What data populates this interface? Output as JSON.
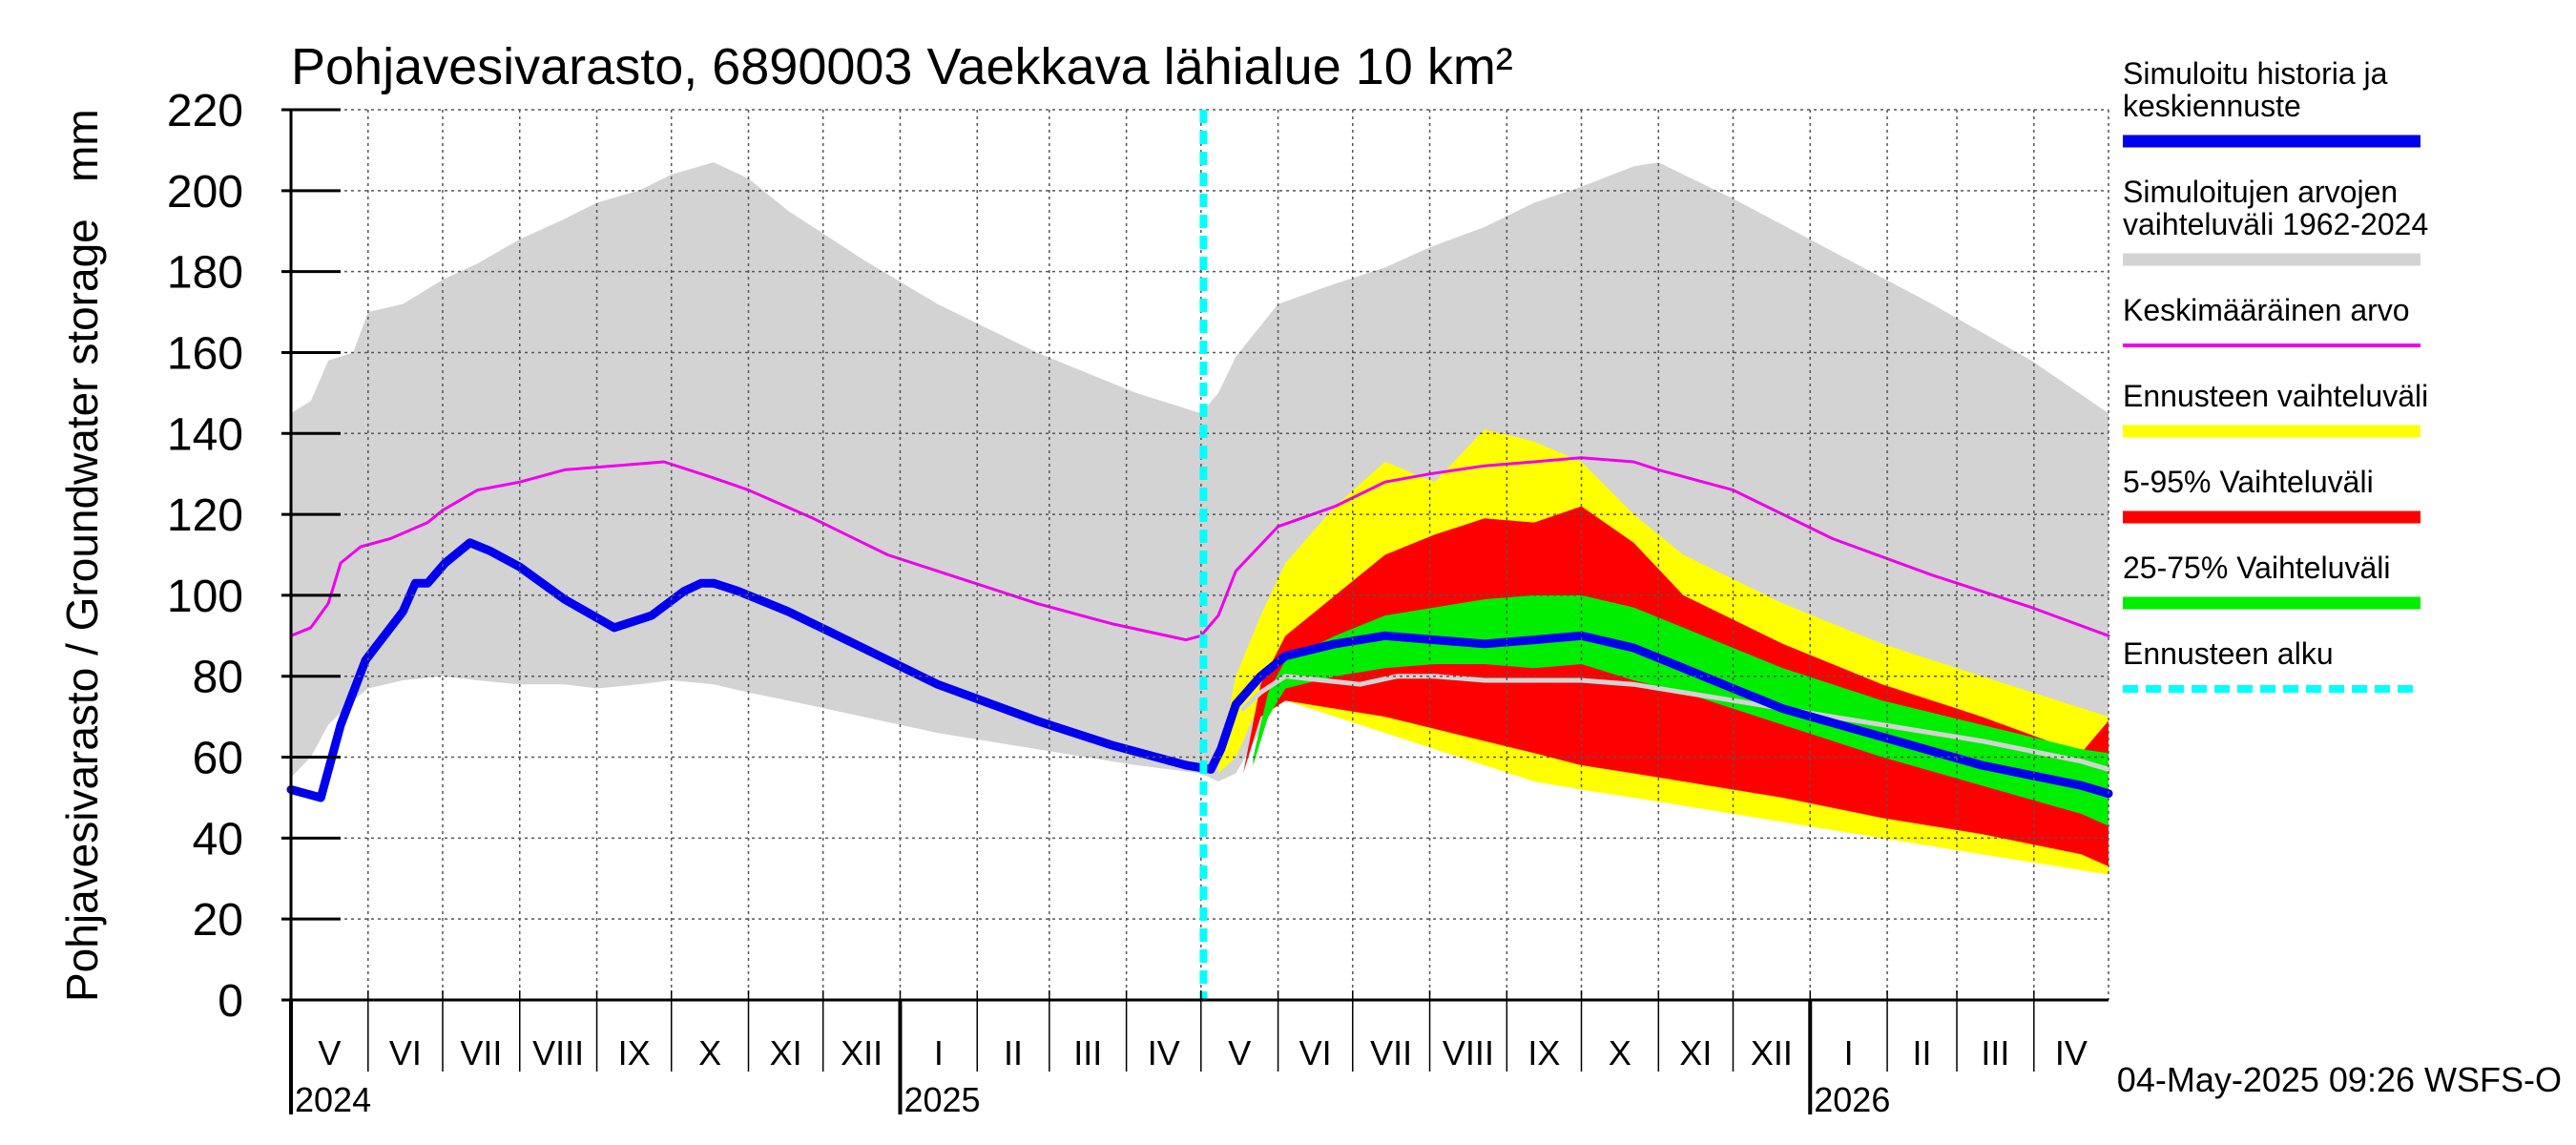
{
  "chart_data": {
    "type": "area",
    "title": "Pohjavesivarasto, 6890003 Vaekkava lähialue 10 km²",
    "ylabel": "Pohjavesivarasto / Groundwater storage   mm",
    "ylim": [
      0,
      220
    ],
    "yticks": [
      0,
      20,
      40,
      60,
      80,
      100,
      120,
      140,
      160,
      180,
      200,
      220
    ],
    "x_range_days": [
      0,
      731
    ],
    "forecast_start_day": 367,
    "months": [
      {
        "label": "V",
        "start": 0,
        "end": 31
      },
      {
        "label": "VI",
        "start": 31,
        "end": 61
      },
      {
        "label": "VII",
        "start": 61,
        "end": 92
      },
      {
        "label": "VIII",
        "start": 92,
        "end": 123
      },
      {
        "label": "IX",
        "start": 123,
        "end": 153
      },
      {
        "label": "X",
        "start": 153,
        "end": 184
      },
      {
        "label": "XI",
        "start": 184,
        "end": 214
      },
      {
        "label": "XII",
        "start": 214,
        "end": 245
      },
      {
        "label": "I",
        "start": 245,
        "end": 276
      },
      {
        "label": "II",
        "start": 276,
        "end": 305
      },
      {
        "label": "III",
        "start": 305,
        "end": 336
      },
      {
        "label": "IV",
        "start": 336,
        "end": 366
      },
      {
        "label": "V",
        "start": 366,
        "end": 397
      },
      {
        "label": "VI",
        "start": 397,
        "end": 427
      },
      {
        "label": "VII",
        "start": 427,
        "end": 458
      },
      {
        "label": "VIII",
        "start": 458,
        "end": 489
      },
      {
        "label": "IX",
        "start": 489,
        "end": 519
      },
      {
        "label": "X",
        "start": 519,
        "end": 550
      },
      {
        "label": "XI",
        "start": 550,
        "end": 580
      },
      {
        "label": "XII",
        "start": 580,
        "end": 611
      },
      {
        "label": "I",
        "start": 611,
        "end": 642
      },
      {
        "label": "II",
        "start": 642,
        "end": 670
      },
      {
        "label": "III",
        "start": 670,
        "end": 701
      },
      {
        "label": "IV",
        "start": 701,
        "end": 731
      }
    ],
    "years": [
      {
        "label": "2024",
        "day": 0
      },
      {
        "label": "2025",
        "day": 245
      },
      {
        "label": "2026",
        "day": 611
      }
    ],
    "series": [
      {
        "name": "Simuloitujen arvojen vaihteluväli 1962-2024",
        "kind": "band",
        "color": "#d3d3d3",
        "x": [
          0,
          8,
          15,
          25,
          31,
          45,
          61,
          75,
          92,
          110,
          123,
          140,
          153,
          170,
          184,
          200,
          230,
          260,
          300,
          340,
          366,
          373,
          380,
          397,
          420,
          440,
          458,
          480,
          500,
          519,
          540,
          550,
          580,
          620,
          660,
          700,
          731
        ],
        "upper": [
          145,
          148,
          158,
          160,
          170,
          172,
          178,
          182,
          188,
          193,
          197,
          200,
          204,
          207,
          203,
          195,
          183,
          172,
          160,
          150,
          145,
          150,
          159,
          172,
          177,
          181,
          186,
          191,
          197,
          201,
          206,
          207,
          198,
          185,
          172,
          158,
          145
        ],
        "lower": [
          55,
          60,
          68,
          74,
          77,
          79,
          80,
          79,
          78,
          78,
          77,
          78,
          79,
          78,
          76,
          74,
          70,
          66,
          62,
          58,
          56,
          54,
          56,
          74,
          72,
          71,
          70,
          70,
          69,
          68,
          66,
          65,
          62,
          60,
          58,
          56,
          55
        ]
      },
      {
        "name": "Ennusteen vaihteluväli",
        "kind": "band",
        "color": "#ffff00",
        "x": [
          373,
          380,
          390,
          400,
          420,
          440,
          460,
          480,
          500,
          519,
          540,
          560,
          600,
          640,
          680,
          731
        ],
        "upper": [
          58,
          80,
          95,
          108,
          122,
          133,
          128,
          141,
          138,
          133,
          120,
          110,
          98,
          88,
          80,
          70
        ],
        "lower": [
          56,
          60,
          74,
          74,
          70,
          66,
          62,
          58,
          54,
          52,
          50,
          48,
          44,
          40,
          36,
          31
        ]
      },
      {
        "name": "5-95% Vaihteluväli",
        "kind": "band",
        "color": "#ff0000",
        "x": [
          383,
          390,
          400,
          420,
          440,
          460,
          480,
          500,
          519,
          540,
          560,
          600,
          640,
          680,
          720,
          731
        ],
        "upper": [
          56,
          78,
          90,
          100,
          110,
          115,
          119,
          118,
          122,
          113,
          100,
          88,
          78,
          70,
          61,
          69
        ],
        "lower": [
          56,
          70,
          74,
          72,
          70,
          67,
          64,
          61,
          58,
          56,
          54,
          50,
          45,
          41,
          36,
          33
        ]
      },
      {
        "name": "25-75% Vaihteluväli",
        "kind": "band",
        "color": "#00ee00",
        "x": [
          387,
          393,
          400,
          420,
          440,
          460,
          480,
          500,
          519,
          540,
          560,
          600,
          640,
          680,
          720,
          731
        ],
        "upper": [
          60,
          76,
          84,
          90,
          95,
          97,
          99,
          100,
          100,
          97,
          92,
          82,
          74,
          68,
          62,
          61
        ],
        "lower": [
          58,
          70,
          77,
          80,
          82,
          83,
          83,
          82,
          83,
          79,
          76,
          68,
          60,
          53,
          46,
          43
        ]
      },
      {
        "name": "Keskimääräinen arvo",
        "kind": "line",
        "color": "#ee00ee",
        "width": 3,
        "x": [
          0,
          8,
          15,
          20,
          28,
          40,
          55,
          61,
          75,
          92,
          110,
          130,
          150,
          170,
          184,
          210,
          240,
          270,
          300,
          330,
          360,
          366,
          373,
          380,
          397,
          420,
          440,
          458,
          480,
          500,
          519,
          540,
          550,
          580,
          620,
          660,
          700,
          731
        ],
        "y": [
          90,
          92,
          98,
          108,
          112,
          114,
          118,
          121,
          126,
          128,
          131,
          132,
          133,
          129,
          126,
          119,
          110,
          104,
          98,
          93,
          89,
          90,
          95,
          106,
          117,
          122,
          128,
          130,
          132,
          133,
          134,
          133,
          131,
          126,
          114,
          105,
          97,
          90
        ]
      },
      {
        "name": "Median forecast",
        "kind": "line",
        "color": "#d3d3d3",
        "width": 5,
        "x": [
          383,
          390,
          400,
          415,
          430,
          445,
          460,
          480,
          500,
          519,
          540,
          570,
          600,
          640,
          680,
          720,
          731
        ],
        "y": [
          72,
          76,
          80,
          79,
          78,
          80,
          80,
          79,
          79,
          79,
          78,
          75,
          72,
          68,
          64,
          59,
          57
        ]
      },
      {
        "name": "Simuloitu historia ja keskiennuste",
        "kind": "line",
        "color": "#0000ee",
        "width": 9,
        "x": [
          0,
          12,
          20,
          30,
          35,
          45,
          50,
          55,
          62,
          72,
          80,
          92,
          110,
          130,
          145,
          158,
          165,
          170,
          175,
          180,
          184,
          200,
          230,
          260,
          300,
          330,
          360,
          370,
          374,
          380,
          390,
          400,
          420,
          440,
          460,
          480,
          500,
          519,
          540,
          560,
          580,
          600,
          640,
          680,
          720,
          731
        ],
        "y": [
          52,
          50,
          68,
          84,
          88,
          96,
          103,
          103,
          108,
          113,
          111,
          107,
          99,
          92,
          95,
          101,
          103,
          103,
          102,
          101,
          100,
          96,
          87,
          78,
          69,
          63,
          58,
          57,
          62,
          73,
          80,
          85,
          88,
          90,
          89,
          88,
          89,
          90,
          87,
          82,
          77,
          72,
          65,
          58,
          53,
          51
        ]
      }
    ],
    "legend": [
      {
        "label": "Simuloitu historia ja keskiennuste",
        "color": "#0000ee",
        "style": "solid"
      },
      {
        "label": "Simuloitujen arvojen vaihteluväli 1962-2024",
        "color": "#d3d3d3",
        "style": "solid"
      },
      {
        "label": "Keskimääräinen arvo",
        "color": "#ee00ee",
        "style": "thin"
      },
      {
        "label": "Ennusteen vaihteluväli",
        "color": "#ffff00",
        "style": "solid"
      },
      {
        "label": "5-95% Vaihteluväli",
        "color": "#ff0000",
        "style": "solid"
      },
      {
        "label": "25-75% Vaihteluväli",
        "color": "#00ee00",
        "style": "solid"
      },
      {
        "label": "Ennusteen alku",
        "color": "#00ffff",
        "style": "dashed"
      }
    ],
    "footer": "04-May-2025 09:26 WSFS-O"
  }
}
